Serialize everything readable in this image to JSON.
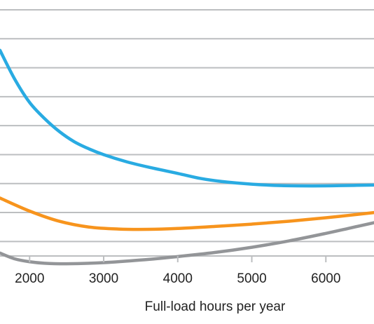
{
  "chart_data": {
    "type": "line",
    "title": "",
    "xlabel": "Full-load hours per year",
    "ylabel": "",
    "x_ticks": [
      "2000",
      "3000",
      "4000",
      "5000",
      "6000"
    ],
    "xlim": [
      1600,
      6650
    ],
    "ylim": [
      0,
      8.5
    ],
    "grid": true,
    "gridlines_y": [
      0.5,
      1.5,
      2.5,
      3.5,
      4.5,
      5.5,
      6.5,
      7.5,
      8.5
    ],
    "series": [
      {
        "color": "#29abe2",
        "x": [
          1600,
          1800,
          2000,
          2200,
          2400,
          2600,
          2800,
          3000,
          3300,
          3600,
          4000,
          4300,
          4600,
          5000,
          5400,
          5800,
          6200,
          6650
        ],
        "y": [
          7.1,
          6.1,
          5.3,
          4.75,
          4.3,
          3.95,
          3.7,
          3.5,
          3.26,
          3.07,
          2.85,
          2.68,
          2.57,
          2.48,
          2.43,
          2.42,
          2.43,
          2.45
        ]
      },
      {
        "color": "#f7941d",
        "x": [
          1600,
          2000,
          2400,
          2800,
          3200,
          3600,
          4000,
          4500,
          5000,
          5500,
          6000,
          6300,
          6650
        ],
        "y": [
          2.0,
          1.55,
          1.2,
          1.0,
          0.93,
          0.92,
          0.95,
          1.02,
          1.1,
          1.2,
          1.32,
          1.4,
          1.5
        ]
      },
      {
        "color": "#939598",
        "x": [
          1600,
          1800,
          2000,
          2200,
          2500,
          3000,
          3500,
          4000,
          4500,
          5000,
          5500,
          6000,
          6300,
          6650
        ],
        "y": [
          0.1,
          -0.1,
          -0.2,
          -0.25,
          -0.27,
          -0.23,
          -0.14,
          -0.02,
          0.12,
          0.3,
          0.52,
          0.78,
          0.95,
          1.15
        ]
      }
    ]
  }
}
